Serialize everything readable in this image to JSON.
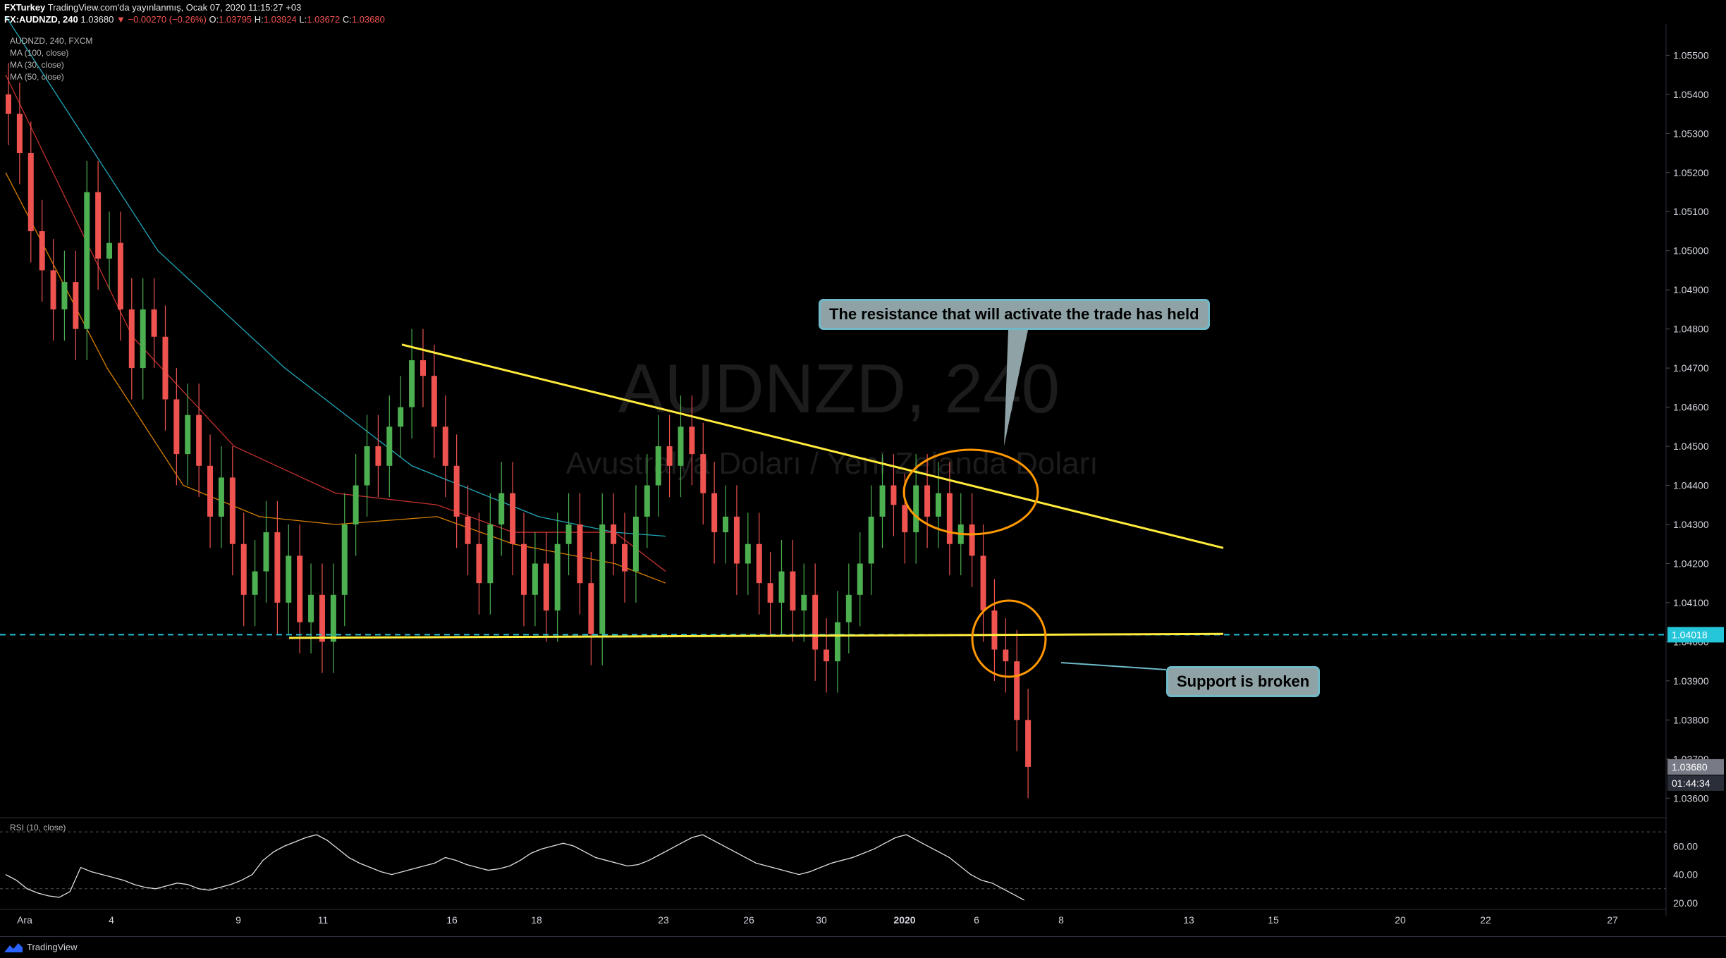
{
  "header": {
    "publisher": "FXTurkey",
    "published_text": "TradingView.com'da yayınlanmış, Ocak 07, 2020 11:15:27 +03",
    "symbol": "FX:AUDNZD, 240",
    "last": "1.03680",
    "change": "−0.00270 (−0.26%)",
    "o_label": "O:",
    "o": "1.03795",
    "h_label": "H:",
    "h": "1.03924",
    "l_label": "L:",
    "l": "1.03672",
    "c_label": "C:",
    "c": "1.03680"
  },
  "legend": {
    "instrument": "AUDNZD, 240, FXCM",
    "ma100": "MA (100, close)",
    "ma30": "MA (30, close)",
    "ma50": "MA (50, close)",
    "rsi": "RSI (10, close)"
  },
  "watermark": {
    "title": "AUDNZD, 240",
    "subtitle": "Avustralya Doları / Yeni Zelanda Doları"
  },
  "annotations": {
    "resistance": "The resistance that will activate the trade has held",
    "support": "Support is broken"
  },
  "price_labels": {
    "level": "1.04018",
    "last": "1.03680",
    "countdown": "01:44:34"
  },
  "footer": {
    "brand": "TradingView"
  },
  "colors": {
    "up": "#26a69a",
    "candle_up": "#4caf50",
    "candle_down": "#ef5350",
    "ma100": "#26c6da",
    "ma30": "#ff9800",
    "ma50": "#e53935",
    "trendline": "#ffeb3b",
    "level": "#26c6da",
    "circle": "#ff9800"
  },
  "chart_data": {
    "type": "candlestick",
    "series": [
      {
        "name": "AUDNZD, 240, FXCM",
        "kind": "candles",
        "note": "open/close pairs per 4h bar, approximate",
        "values": [
          [
            1.054,
            1.0535
          ],
          [
            1.0535,
            1.0525
          ],
          [
            1.0525,
            1.0505
          ],
          [
            1.0505,
            1.0495
          ],
          [
            1.0495,
            1.0485
          ],
          [
            1.0485,
            1.0492
          ],
          [
            1.0492,
            1.048
          ],
          [
            1.048,
            1.0515
          ],
          [
            1.0515,
            1.0498
          ],
          [
            1.0498,
            1.0502
          ],
          [
            1.0502,
            1.0485
          ],
          [
            1.0485,
            1.047
          ],
          [
            1.047,
            1.0485
          ],
          [
            1.0485,
            1.0478
          ],
          [
            1.0478,
            1.0462
          ],
          [
            1.0462,
            1.0448
          ],
          [
            1.0448,
            1.0458
          ],
          [
            1.0458,
            1.0445
          ],
          [
            1.0445,
            1.0432
          ],
          [
            1.0432,
            1.0442
          ],
          [
            1.0442,
            1.0425
          ],
          [
            1.0425,
            1.0412
          ],
          [
            1.0412,
            1.0418
          ],
          [
            1.0418,
            1.0428
          ],
          [
            1.0428,
            1.041
          ],
          [
            1.041,
            1.0422
          ],
          [
            1.0422,
            1.0405
          ],
          [
            1.0405,
            1.0412
          ],
          [
            1.0412,
            1.04
          ],
          [
            1.04,
            1.0412
          ],
          [
            1.0412,
            1.043
          ],
          [
            1.043,
            1.044
          ],
          [
            1.044,
            1.045
          ],
          [
            1.045,
            1.0445
          ],
          [
            1.0445,
            1.0455
          ],
          [
            1.0455,
            1.046
          ],
          [
            1.046,
            1.0472
          ],
          [
            1.0472,
            1.0468
          ],
          [
            1.0468,
            1.0455
          ],
          [
            1.0455,
            1.0445
          ],
          [
            1.0445,
            1.0432
          ],
          [
            1.0432,
            1.0425
          ],
          [
            1.0425,
            1.0415
          ],
          [
            1.0415,
            1.043
          ],
          [
            1.043,
            1.0438
          ],
          [
            1.0438,
            1.0425
          ],
          [
            1.0425,
            1.0412
          ],
          [
            1.0412,
            1.042
          ],
          [
            1.042,
            1.0408
          ],
          [
            1.0408,
            1.0425
          ],
          [
            1.0425,
            1.043
          ],
          [
            1.043,
            1.0415
          ],
          [
            1.0415,
            1.0402
          ],
          [
            1.0402,
            1.043
          ],
          [
            1.043,
            1.0425
          ],
          [
            1.0425,
            1.0418
          ],
          [
            1.0418,
            1.0432
          ],
          [
            1.0432,
            1.044
          ],
          [
            1.044,
            1.045
          ],
          [
            1.045,
            1.0445
          ],
          [
            1.0445,
            1.0455
          ],
          [
            1.0455,
            1.0448
          ],
          [
            1.0448,
            1.0438
          ],
          [
            1.0438,
            1.0428
          ],
          [
            1.0428,
            1.0432
          ],
          [
            1.0432,
            1.042
          ],
          [
            1.042,
            1.0425
          ],
          [
            1.0425,
            1.0415
          ],
          [
            1.0415,
            1.041
          ],
          [
            1.041,
            1.0418
          ],
          [
            1.0418,
            1.0408
          ],
          [
            1.0408,
            1.0412
          ],
          [
            1.0412,
            1.0398
          ],
          [
            1.0398,
            1.0395
          ],
          [
            1.0395,
            1.0405
          ],
          [
            1.0405,
            1.0412
          ],
          [
            1.0412,
            1.042
          ],
          [
            1.042,
            1.0432
          ],
          [
            1.0432,
            1.044
          ],
          [
            1.044,
            1.0435
          ],
          [
            1.0435,
            1.0428
          ],
          [
            1.0428,
            1.044
          ],
          [
            1.044,
            1.0432
          ],
          [
            1.0432,
            1.0438
          ],
          [
            1.0438,
            1.0425
          ],
          [
            1.0425,
            1.043
          ],
          [
            1.043,
            1.0422
          ],
          [
            1.0422,
            1.0408
          ],
          [
            1.0408,
            1.0398
          ],
          [
            1.0398,
            1.0395
          ],
          [
            1.0395,
            1.038
          ],
          [
            1.038,
            1.0368
          ]
        ]
      },
      {
        "name": "MA (100, close)",
        "kind": "line",
        "values": [
          [
            0,
            1.056
          ],
          [
            60,
            1.05
          ],
          [
            110,
            1.047
          ],
          [
            160,
            1.0445
          ],
          [
            210,
            1.0432
          ],
          [
            240,
            1.0428
          ],
          [
            260,
            1.0427
          ]
        ]
      },
      {
        "name": "MA (30, close)",
        "kind": "line",
        "values": [
          [
            0,
            1.052
          ],
          [
            40,
            1.047
          ],
          [
            70,
            1.044
          ],
          [
            100,
            1.0432
          ],
          [
            130,
            1.043
          ],
          [
            170,
            1.0432
          ],
          [
            200,
            1.0425
          ],
          [
            240,
            1.042
          ],
          [
            260,
            1.0415
          ]
        ]
      },
      {
        "name": "MA (50, close)",
        "kind": "line",
        "values": [
          [
            0,
            1.0545
          ],
          [
            50,
            1.0478
          ],
          [
            90,
            1.045
          ],
          [
            130,
            1.0438
          ],
          [
            170,
            1.0435
          ],
          [
            200,
            1.0428
          ],
          [
            240,
            1.0428
          ],
          [
            260,
            1.0418
          ]
        ]
      }
    ],
    "trendlines": [
      {
        "name": "resistance",
        "from": {
          "date": "Ara 13",
          "y": 1.0476
        },
        "to": {
          "date": "Oca 13",
          "y": 1.0424
        }
      },
      {
        "name": "support",
        "from": {
          "date": "Ara 10",
          "y": 1.0401
        },
        "to": {
          "date": "Oca 13",
          "y": 1.0402
        }
      }
    ],
    "horizontal_level": 1.04018,
    "yaxis_ticks": [
      "1.05500",
      "1.05400",
      "1.05300",
      "1.05200",
      "1.05100",
      "1.05000",
      "1.04900",
      "1.04800",
      "1.04700",
      "1.04600",
      "1.04500",
      "1.04400",
      "1.04300",
      "1.04200",
      "1.04100",
      "1.04000",
      "1.03900",
      "1.03800",
      "1.03700",
      "1.03600"
    ],
    "ylim": [
      1.0355,
      1.0558
    ],
    "xaxis_ticks": [
      "Ara",
      "4",
      "9",
      "11",
      "16",
      "18",
      "23",
      "26",
      "30",
      "2020",
      "6",
      "8",
      "13",
      "15",
      "20",
      "22",
      "27"
    ],
    "rsi": {
      "name": "RSI (10, close)",
      "ticks": [
        "60.00",
        "40.00",
        "20.00"
      ],
      "ylim": [
        18,
        75
      ],
      "values": [
        40,
        36,
        30,
        27,
        25,
        24,
        28,
        45,
        42,
        40,
        38,
        36,
        33,
        31,
        30,
        32,
        34,
        33,
        30,
        29,
        31,
        33,
        36,
        40,
        50,
        56,
        60,
        63,
        66,
        68,
        64,
        58,
        52,
        48,
        45,
        42,
        40,
        42,
        44,
        46,
        48,
        52,
        50,
        47,
        45,
        43,
        44,
        46,
        50,
        55,
        58,
        60,
        62,
        60,
        56,
        52,
        50,
        48,
        46,
        47,
        50,
        54,
        58,
        62,
        66,
        68,
        64,
        60,
        56,
        52,
        48,
        46,
        44,
        42,
        40,
        42,
        45,
        48,
        50,
        52,
        55,
        58,
        62,
        66,
        68,
        64,
        60,
        56,
        52,
        46,
        40,
        36,
        34,
        30,
        26,
        22
      ]
    }
  }
}
